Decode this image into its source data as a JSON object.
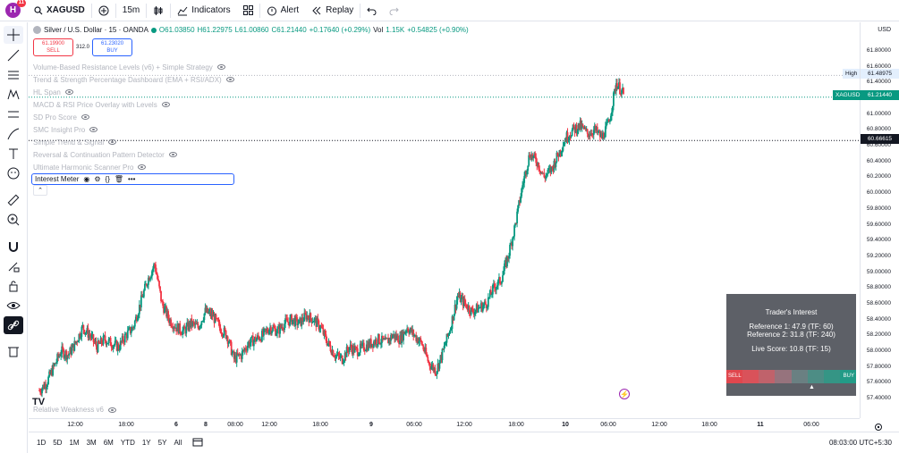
{
  "topbar": {
    "avatar": "H",
    "badge": "11",
    "symbol": "XAGUSD",
    "interval": "15m",
    "indicators": "Indicators",
    "alert": "Alert",
    "replay": "Replay"
  },
  "legend": {
    "title": "Silver / U.S. Dollar · 15 · OANDA",
    "o": "O61.03850",
    "h": "H61.22975",
    "l": "L61.00860",
    "c": "C61.21440",
    "chg": "+0.17640 (+0.29%)",
    "vol_label": "Vol",
    "vol": "1.15K",
    "vol_chg": "+0.54825 (+0.90%)"
  },
  "trade": {
    "sell_price": "61.19900",
    "sell_label": "SELL",
    "spread": "312.0",
    "buy_price": "61.23020",
    "buy_label": "BUY"
  },
  "indicators": [
    "Volume-Based Resistance Levels (v6) + Simple Strategy",
    "Trend & Strength Percentage Dashboard (EMA + RSI/ADX)",
    "HL Span",
    "MACD & RSI Price Overlay with Levels",
    "SD Pro Score",
    "SMC Insight Pro",
    "Simple Trend & Signal",
    "Reversal & Continuation Pattern Detector",
    "Ultimate Harmonic Scanner Pro"
  ],
  "active_indicator": "Interest Meter",
  "bottom_indicator": "Relative Weakness v6",
  "price_axis": {
    "currency": "USD",
    "ticks": [
      "61.80000",
      "61.60000",
      "61.40000",
      "61.20000",
      "61.00000",
      "60.80000",
      "60.60000",
      "60.40000",
      "60.20000",
      "60.00000",
      "59.80000",
      "59.60000",
      "59.40000",
      "59.20000",
      "59.00000",
      "58.80000",
      "58.60000",
      "58.40000",
      "58.20000",
      "58.00000",
      "57.80000",
      "57.60000",
      "57.40000"
    ],
    "high_label": "High",
    "high_value": "61.48975",
    "symbol_label": "XAGUSD",
    "last_price": "61.21440",
    "cursor_price": "60.66615"
  },
  "time_axis": [
    "12:00",
    "18:00",
    "6",
    "8",
    "08:00",
    "12:00",
    "18:00",
    "9",
    "06:00",
    "12:00",
    "18:00",
    "10",
    "06:00",
    "12:00",
    "18:00",
    "11",
    "06:00"
  ],
  "ranges": [
    "1D",
    "5D",
    "1M",
    "3M",
    "6M",
    "YTD",
    "1Y",
    "5Y",
    "All"
  ],
  "clock": "08:03:00 UTC+5:30",
  "traders": {
    "title": "Trader's Interest",
    "ref1": "Reference 1: 47.9 (TF: 60)",
    "ref2": "Reference 2: 31.8 (TF: 240)",
    "live": "Live Score: 10.8 (TF: 15)",
    "sell": "SELL",
    "buy": "BUY",
    "pointer": "▲"
  },
  "colors": {
    "up": "#089981",
    "down": "#f23645",
    "accent": "#2962ff"
  },
  "chart_data": {
    "type": "candlestick",
    "symbol": "XAGUSD",
    "ylim": [
      57.4,
      61.8
    ],
    "last": 61.2144,
    "high": 61.48975,
    "series": [
      57.5,
      57.6,
      57.8,
      58,
      57.95,
      58.1,
      58.3,
      58.2,
      58.05,
      58.15,
      58.1,
      58.05,
      58.2,
      58.3,
      58.6,
      58.9,
      59.1,
      58.6,
      58.4,
      58.3,
      58.25,
      58.35,
      58.3,
      58.5,
      58.45,
      58.3,
      58.2,
      57.9,
      57.95,
      58.1,
      58.15,
      58.2,
      58.3,
      58.25,
      58.35,
      58.4,
      58.35,
      58.45,
      58.4,
      58.3,
      58.1,
      57.95,
      57.9,
      58.05,
      58.0,
      58.05,
      58.1,
      58.15,
      58.1,
      58.2,
      58.15,
      58.3,
      58.2,
      58.1,
      57.85,
      57.75,
      58.0,
      58.3,
      58.7,
      58.6,
      58.5,
      58.55,
      58.6,
      58.8,
      58.9,
      59.2,
      59.6,
      60.1,
      60.5,
      60.4,
      60.2,
      60.3,
      60.5,
      60.7,
      60.8,
      60.85,
      60.75,
      60.8,
      60.7,
      60.9,
      61.4,
      61.25
    ]
  }
}
